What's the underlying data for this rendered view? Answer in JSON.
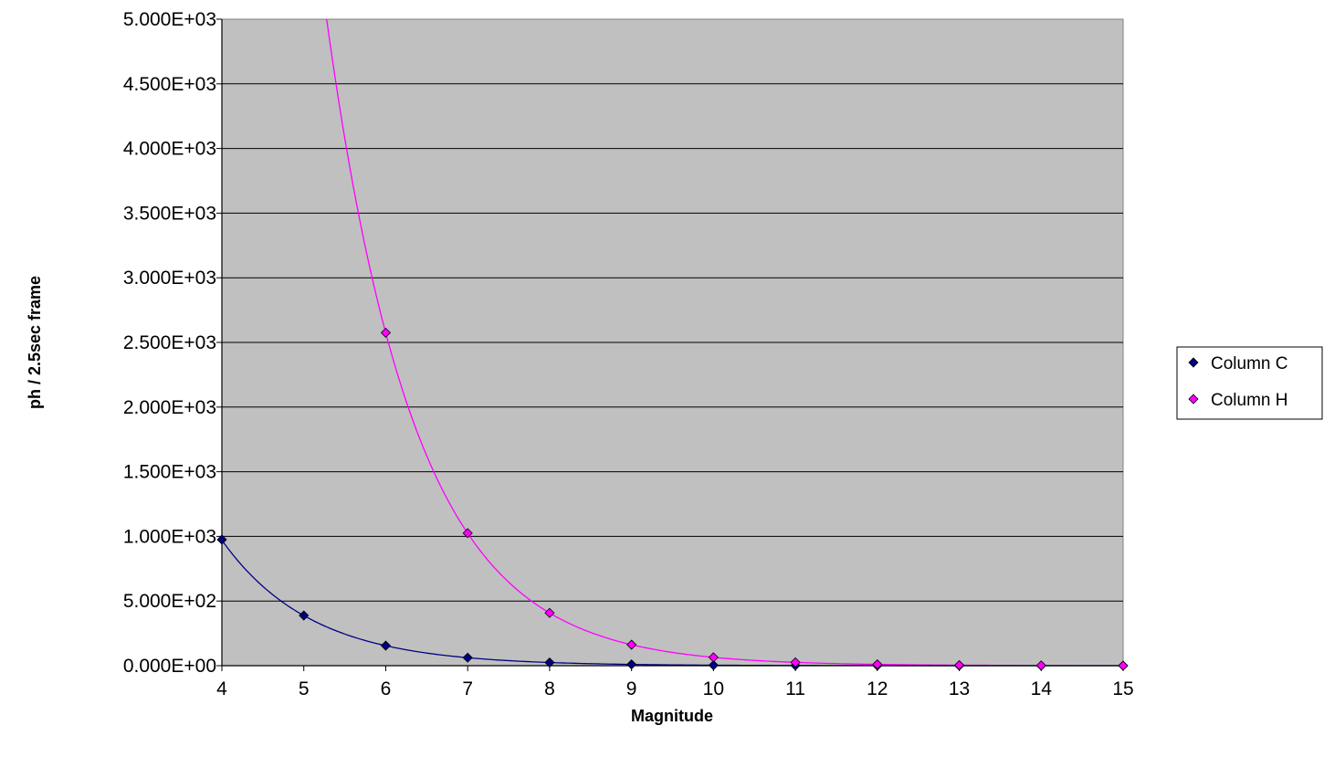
{
  "chart_data": {
    "type": "scatter",
    "title": "",
    "xlabel": "Magnitude",
    "ylabel": "ph / 2.5sec frame",
    "xlim": [
      4,
      15
    ],
    "ylim": [
      0,
      5000
    ],
    "x_ticks": [
      "4",
      "5",
      "6",
      "7",
      "8",
      "9",
      "10",
      "11",
      "12",
      "13",
      "14",
      "15"
    ],
    "y_ticks": [
      "0.000E+00",
      "5.000E+02",
      "1.000E+03",
      "1.500E+03",
      "2.000E+03",
      "2.500E+03",
      "3.000E+03",
      "3.500E+03",
      "4.000E+03",
      "4.500E+03",
      "5.000E+03"
    ],
    "grid": "horizontal",
    "plot_background": "#C0C0C0",
    "legend_position": "right",
    "series": [
      {
        "name": "Column C",
        "color": "#000080",
        "marker": "diamond",
        "trendline": "exponential",
        "x": [
          4,
          5,
          6,
          7,
          8,
          9,
          10,
          11,
          12,
          13,
          14,
          15
        ],
        "y": [
          975,
          388,
          155,
          62,
          24.5,
          9.8,
          3.9,
          1.55,
          0.62,
          0.25,
          0.1,
          0.04
        ]
      },
      {
        "name": "Column H",
        "color": "#FF00FF",
        "marker": "diamond",
        "trendline": "exponential",
        "x": [
          6,
          7,
          8,
          9,
          10,
          11,
          12,
          13,
          14,
          15
        ],
        "y": [
          2575,
          1025,
          408,
          162,
          64.5,
          25.7,
          10.2,
          4.1,
          1.6,
          0.65
        ]
      }
    ]
  }
}
